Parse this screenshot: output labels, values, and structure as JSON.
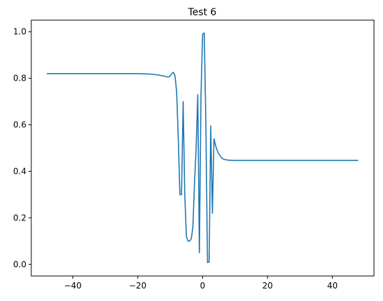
{
  "chart_data": {
    "type": "line",
    "title": "Test 6",
    "xlabel": "",
    "ylabel": "",
    "xlim": [
      -52.8,
      52.8
    ],
    "ylim": [
      -0.05,
      1.05
    ],
    "xticks": [
      -40,
      -20,
      0,
      20,
      40
    ],
    "xtick_labels": [
      "−40",
      "−20",
      "0",
      "20",
      "40"
    ],
    "yticks": [
      0.0,
      0.2,
      0.4,
      0.6,
      0.8,
      1.0
    ],
    "ytick_labels": [
      "0.0",
      "0.2",
      "0.4",
      "0.6",
      "0.8",
      "1.0"
    ],
    "grid": false,
    "series": [
      {
        "color": "#1f77b4",
        "x": [
          -48,
          -40,
          -30,
          -20,
          -16,
          -14,
          -12,
          -11,
          -10.5,
          -10,
          -9.5,
          -9,
          -8.5,
          -8,
          -7.5,
          -7,
          -6.5,
          -6,
          -5.5,
          -5,
          -4.5,
          -4,
          -3.5,
          -3,
          -2.5,
          -2,
          -1.5,
          -1,
          -0.5,
          0,
          0.5,
          1,
          1.5,
          2,
          2.5,
          3,
          3.5,
          4,
          4.5,
          5,
          5.5,
          6,
          7,
          8,
          9,
          10,
          12,
          15,
          20,
          30,
          40,
          48
        ],
        "y": [
          0.82,
          0.82,
          0.82,
          0.82,
          0.818,
          0.815,
          0.81,
          0.806,
          0.806,
          0.81,
          0.82,
          0.826,
          0.81,
          0.74,
          0.54,
          0.3,
          0.3,
          0.7,
          0.3,
          0.12,
          0.1,
          0.1,
          0.11,
          0.16,
          0.35,
          0.5,
          0.73,
          0.05,
          0.73,
          0.99,
          0.995,
          0.6,
          0.008,
          0.01,
          0.595,
          0.22,
          0.54,
          0.51,
          0.49,
          0.475,
          0.465,
          0.455,
          0.45,
          0.448,
          0.447,
          0.447,
          0.447,
          0.447,
          0.447,
          0.447,
          0.447,
          0.447
        ]
      }
    ]
  }
}
